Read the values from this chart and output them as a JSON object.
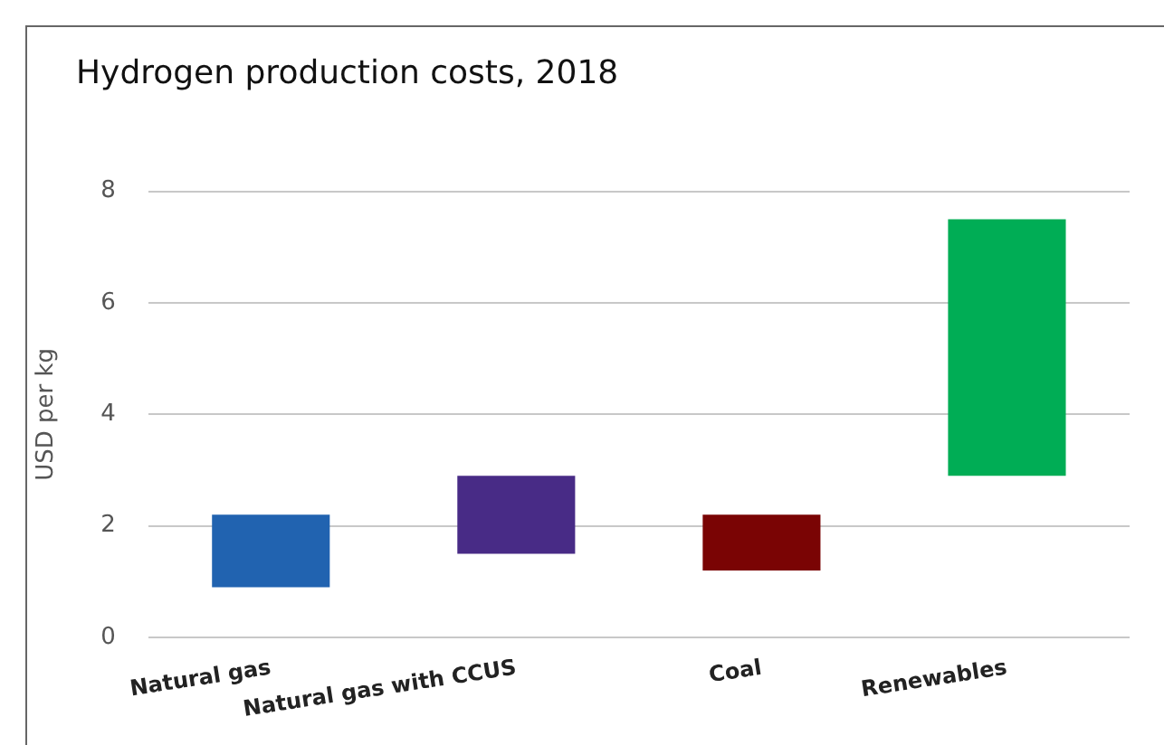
{
  "chart_data": {
    "type": "bar",
    "title": "Hydrogen production costs, 2018",
    "ylabel": "USD per kg",
    "categories": [
      "Natural gas",
      "Natural gas with CCUS",
      "Coal",
      "Renewables"
    ],
    "base": [
      0.9,
      1.5,
      1.2,
      2.9
    ],
    "values": [
      1.3,
      1.4,
      1.0,
      4.6
    ],
    "colors": [
      "#2163b0",
      "#482b86",
      "#7a0404",
      "#00ad55"
    ],
    "ylim": [
      0,
      8
    ],
    "yticks": [
      0,
      2,
      4,
      6,
      8
    ],
    "grid": "y"
  }
}
